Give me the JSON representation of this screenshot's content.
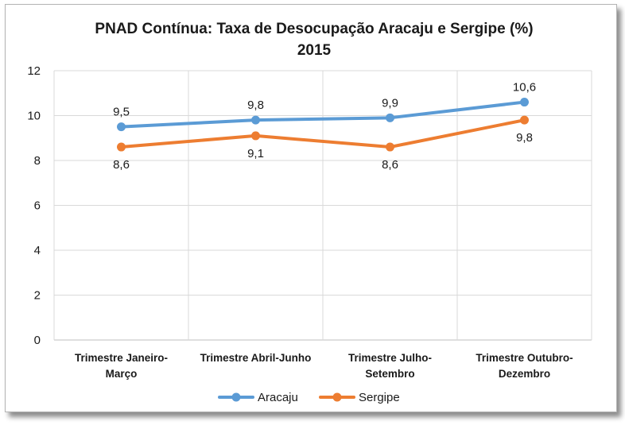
{
  "chart_data": {
    "type": "line",
    "title": "PNAD Contínua: Taxa de Desocupação Aracaju e Sergipe (%)",
    "subtitle": "2015",
    "categories": [
      [
        "Trimestre Janeiro-",
        "Março"
      ],
      [
        "Trimestre Abril-Junho"
      ],
      [
        "Trimestre Julho-",
        "Setembro"
      ],
      [
        "Trimestre Outubro-",
        "Dezembro"
      ]
    ],
    "series": [
      {
        "name": "Aracaju",
        "color": "#5b9bd5",
        "values": [
          9.5,
          9.8,
          9.9,
          10.6
        ],
        "labels": [
          "9,5",
          "9,8",
          "9,9",
          "10,6"
        ],
        "label_position": "above"
      },
      {
        "name": "Sergipe",
        "color": "#ed7d31",
        "values": [
          8.6,
          9.1,
          8.6,
          9.8
        ],
        "labels": [
          "8,6",
          "9,1",
          "8,6",
          "9,8"
        ],
        "label_position": "below"
      }
    ],
    "ylim": [
      0,
      12
    ],
    "yticks": [
      0,
      2,
      4,
      6,
      8,
      10,
      12
    ],
    "grid": true,
    "legend": "bottom"
  }
}
